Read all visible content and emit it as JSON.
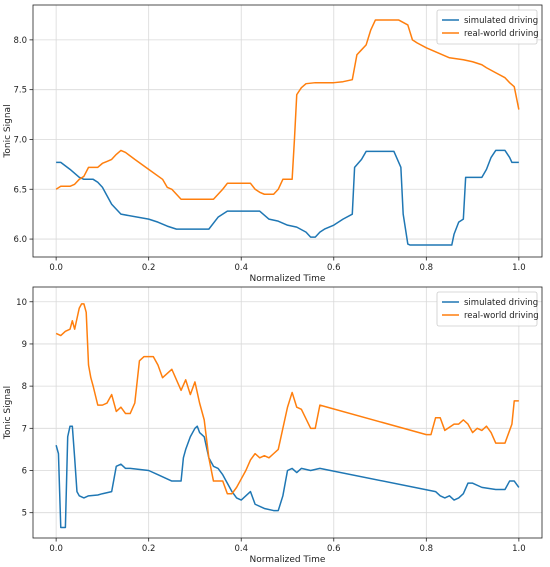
{
  "chart_data": [
    {
      "type": "line",
      "xlabel": "Normalized Time",
      "ylabel": "Tonic Signal",
      "xlim": [
        -0.05,
        1.05
      ],
      "ylim": [
        5.82,
        8.35
      ],
      "xticks": [
        0.0,
        0.2,
        0.4,
        0.6,
        0.8,
        1.0
      ],
      "xtick_labels": [
        "0.0",
        "0.2",
        "0.4",
        "0.6",
        "0.8",
        "1.0"
      ],
      "yticks": [
        6.0,
        6.5,
        7.0,
        7.5,
        8.0
      ],
      "ytick_labels": [
        "6.0",
        "6.5",
        "7.0",
        "7.5",
        "8.0"
      ],
      "grid": true,
      "legend": "top-right",
      "series": [
        {
          "name": "simulated driving",
          "color": "#1f77b4",
          "x": [
            0.0,
            0.01,
            0.03,
            0.05,
            0.06,
            0.08,
            0.09,
            0.1,
            0.12,
            0.14,
            0.2,
            0.22,
            0.24,
            0.26,
            0.3,
            0.32,
            0.33,
            0.35,
            0.37,
            0.4,
            0.42,
            0.44,
            0.46,
            0.48,
            0.5,
            0.52,
            0.54,
            0.55,
            0.56,
            0.57,
            0.58,
            0.6,
            0.62,
            0.64,
            0.645,
            0.66,
            0.67,
            0.69,
            0.71,
            0.73,
            0.745,
            0.75,
            0.76,
            0.765,
            0.77,
            0.78,
            0.8,
            0.82,
            0.84,
            0.855,
            0.86,
            0.87,
            0.88,
            0.885,
            0.89,
            0.9,
            0.92,
            0.93,
            0.94,
            0.95,
            0.96,
            0.97,
            0.98,
            0.985,
            1.0
          ],
          "y": [
            6.77,
            6.77,
            6.7,
            6.62,
            6.6,
            6.6,
            6.57,
            6.52,
            6.35,
            6.25,
            6.2,
            6.17,
            6.13,
            6.1,
            6.1,
            6.1,
            6.1,
            6.22,
            6.28,
            6.28,
            6.28,
            6.28,
            6.2,
            6.18,
            6.14,
            6.12,
            6.07,
            6.02,
            6.02,
            6.07,
            6.1,
            6.14,
            6.2,
            6.25,
            6.72,
            6.8,
            6.88,
            6.88,
            6.88,
            6.88,
            6.72,
            6.25,
            5.95,
            5.94,
            5.94,
            5.94,
            5.94,
            5.94,
            5.94,
            5.94,
            6.05,
            6.17,
            6.2,
            6.62,
            6.62,
            6.62,
            6.62,
            6.7,
            6.82,
            6.89,
            6.89,
            6.89,
            6.82,
            6.77,
            6.77
          ]
        },
        {
          "name": "real-world driving",
          "color": "#ff7f0e",
          "x": [
            0.0,
            0.01,
            0.02,
            0.03,
            0.04,
            0.05,
            0.06,
            0.07,
            0.08,
            0.09,
            0.1,
            0.11,
            0.12,
            0.13,
            0.14,
            0.15,
            0.17,
            0.2,
            0.23,
            0.24,
            0.25,
            0.27,
            0.3,
            0.32,
            0.33,
            0.34,
            0.35,
            0.36,
            0.37,
            0.38,
            0.42,
            0.43,
            0.44,
            0.45,
            0.47,
            0.48,
            0.49,
            0.5,
            0.51,
            0.515,
            0.52,
            0.53,
            0.54,
            0.56,
            0.58,
            0.6,
            0.62,
            0.64,
            0.65,
            0.66,
            0.67,
            0.68,
            0.69,
            0.7,
            0.71,
            0.72,
            0.74,
            0.76,
            0.77,
            0.78,
            0.8,
            0.82,
            0.85,
            0.88,
            0.9,
            0.92,
            0.93,
            0.95,
            0.97,
            0.98,
            0.99,
            1.0
          ],
          "y": [
            6.5,
            6.53,
            6.53,
            6.53,
            6.55,
            6.6,
            6.63,
            6.72,
            6.72,
            6.72,
            6.76,
            6.78,
            6.8,
            6.85,
            6.89,
            6.87,
            6.8,
            6.7,
            6.6,
            6.52,
            6.5,
            6.4,
            6.4,
            6.4,
            6.4,
            6.4,
            6.45,
            6.5,
            6.56,
            6.56,
            6.56,
            6.5,
            6.47,
            6.45,
            6.45,
            6.5,
            6.6,
            6.6,
            6.6,
            7.0,
            7.45,
            7.52,
            7.56,
            7.57,
            7.57,
            7.57,
            7.58,
            7.6,
            7.85,
            7.9,
            7.95,
            8.1,
            8.2,
            8.2,
            8.2,
            8.2,
            8.2,
            8.15,
            8.0,
            7.97,
            7.92,
            7.88,
            7.82,
            7.8,
            7.78,
            7.75,
            7.72,
            7.67,
            7.62,
            7.57,
            7.53,
            7.3
          ]
        }
      ]
    },
    {
      "type": "line",
      "xlabel": "Normalized Time",
      "ylabel": "Tonic Signal",
      "xlim": [
        -0.05,
        1.05
      ],
      "ylim": [
        4.4,
        10.35
      ],
      "xticks": [
        0.0,
        0.2,
        0.4,
        0.6,
        0.8,
        1.0
      ],
      "xtick_labels": [
        "0.0",
        "0.2",
        "0.4",
        "0.6",
        "0.8",
        "1.0"
      ],
      "yticks": [
        5,
        6,
        7,
        8,
        9,
        10
      ],
      "ytick_labels": [
        "5",
        "6",
        "7",
        "8",
        "9",
        "10"
      ],
      "grid": true,
      "legend": "top-right",
      "series": [
        {
          "name": "simulated driving",
          "color": "#1f77b4",
          "x": [
            0.0,
            0.005,
            0.01,
            0.02,
            0.025,
            0.03,
            0.035,
            0.04,
            0.045,
            0.05,
            0.06,
            0.07,
            0.09,
            0.1,
            0.12,
            0.125,
            0.13,
            0.14,
            0.15,
            0.16,
            0.2,
            0.22,
            0.24,
            0.25,
            0.27,
            0.275,
            0.28,
            0.29,
            0.3,
            0.305,
            0.31,
            0.32,
            0.33,
            0.34,
            0.35,
            0.36,
            0.38,
            0.39,
            0.4,
            0.42,
            0.43,
            0.45,
            0.47,
            0.48,
            0.49,
            0.5,
            0.51,
            0.52,
            0.53,
            0.55,
            0.57,
            0.82,
            0.83,
            0.84,
            0.85,
            0.86,
            0.87,
            0.88,
            0.89,
            0.9,
            0.92,
            0.95,
            0.97,
            0.98,
            0.99,
            1.0
          ],
          "y": [
            6.6,
            6.4,
            4.65,
            4.65,
            6.8,
            7.05,
            7.05,
            6.3,
            5.5,
            5.4,
            5.35,
            5.4,
            5.42,
            5.45,
            5.5,
            5.8,
            6.1,
            6.15,
            6.05,
            6.05,
            6.0,
            5.9,
            5.8,
            5.75,
            5.75,
            6.3,
            6.5,
            6.8,
            7.0,
            7.05,
            6.9,
            6.8,
            6.3,
            6.1,
            6.05,
            5.9,
            5.5,
            5.35,
            5.3,
            5.5,
            5.2,
            5.1,
            5.05,
            5.05,
            5.4,
            6.0,
            6.05,
            5.95,
            6.05,
            6.0,
            6.05,
            5.5,
            5.4,
            5.35,
            5.4,
            5.3,
            5.35,
            5.45,
            5.7,
            5.7,
            5.6,
            5.55,
            5.55,
            5.75,
            5.75,
            5.6
          ]
        },
        {
          "name": "real-world driving",
          "color": "#ff7f0e",
          "x": [
            0.0,
            0.01,
            0.02,
            0.03,
            0.035,
            0.04,
            0.045,
            0.05,
            0.055,
            0.06,
            0.065,
            0.07,
            0.075,
            0.08,
            0.09,
            0.1,
            0.11,
            0.12,
            0.13,
            0.14,
            0.15,
            0.16,
            0.17,
            0.18,
            0.19,
            0.2,
            0.21,
            0.22,
            0.23,
            0.25,
            0.27,
            0.28,
            0.29,
            0.3,
            0.31,
            0.32,
            0.33,
            0.34,
            0.35,
            0.36,
            0.37,
            0.38,
            0.39,
            0.4,
            0.41,
            0.42,
            0.43,
            0.44,
            0.45,
            0.46,
            0.47,
            0.48,
            0.49,
            0.5,
            0.51,
            0.52,
            0.53,
            0.55,
            0.56,
            0.57,
            0.8,
            0.81,
            0.82,
            0.83,
            0.84,
            0.86,
            0.87,
            0.88,
            0.89,
            0.9,
            0.91,
            0.92,
            0.93,
            0.94,
            0.95,
            0.96,
            0.97,
            0.98,
            0.985,
            0.99,
            1.0
          ],
          "y": [
            9.25,
            9.2,
            9.3,
            9.35,
            9.55,
            9.35,
            9.6,
            9.85,
            9.95,
            9.95,
            9.75,
            8.5,
            8.2,
            8.0,
            7.55,
            7.55,
            7.6,
            7.8,
            7.4,
            7.5,
            7.35,
            7.35,
            7.6,
            8.6,
            8.7,
            8.7,
            8.7,
            8.5,
            8.2,
            8.4,
            7.9,
            8.15,
            7.8,
            8.1,
            7.6,
            7.2,
            6.3,
            5.75,
            5.75,
            5.75,
            5.45,
            5.45,
            5.6,
            5.8,
            6.0,
            6.25,
            6.4,
            6.3,
            6.35,
            6.3,
            6.4,
            6.5,
            7.0,
            7.5,
            7.85,
            7.5,
            7.45,
            7.0,
            7.0,
            7.55,
            6.85,
            6.85,
            7.25,
            7.25,
            6.95,
            7.1,
            7.1,
            7.2,
            7.1,
            6.9,
            7.0,
            6.95,
            7.05,
            6.9,
            6.65,
            6.65,
            6.65,
            6.95,
            7.1,
            7.65,
            7.65
          ]
        }
      ]
    }
  ]
}
